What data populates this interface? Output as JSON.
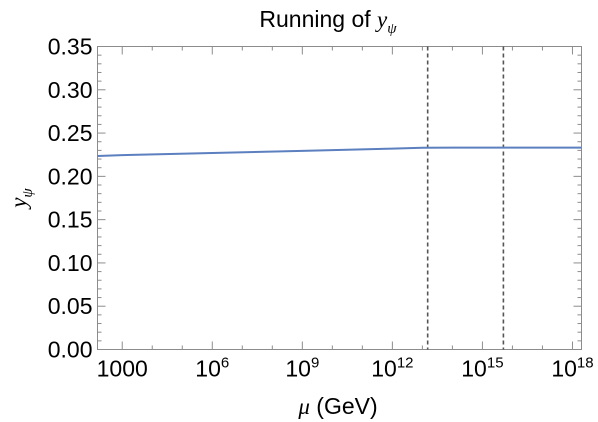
{
  "chart_data": {
    "type": "line",
    "title": "Running of ",
    "title_symbol": "y",
    "title_subscript": "ψ",
    "xlabel_symbol": "μ",
    "xlabel_unit": " (GeV)",
    "ylabel_symbol": "y",
    "ylabel_subscript": "ψ",
    "x_scale": "log",
    "xlim": [
      150,
      2000000000000000000
    ],
    "ylim": [
      0,
      0.35
    ],
    "x_ticks": [
      {
        "value": 1000,
        "base": "1000",
        "exp": ""
      },
      {
        "value": 1000000,
        "base": "10",
        "exp": "6"
      },
      {
        "value": 1000000000,
        "base": "10",
        "exp": "9"
      },
      {
        "value": 1000000000000,
        "base": "10",
        "exp": "12"
      },
      {
        "value": 1000000000000000,
        "base": "10",
        "exp": "15"
      },
      {
        "value": 1000000000000000000,
        "base": "10",
        "exp": "18"
      }
    ],
    "y_ticks": [
      "0.00",
      "0.05",
      "0.10",
      "0.15",
      "0.20",
      "0.25",
      "0.30",
      "0.35"
    ],
    "series": [
      {
        "x": [
          150,
          1000,
          1000000,
          1000000000,
          1000000000000,
          10000000000000,
          100000000000000,
          1000000000000000,
          10000000000000000,
          100000000000000000,
          1000000000000000000,
          2000000000000000000
        ],
        "y": [
          0.2235,
          0.2245,
          0.227,
          0.2295,
          0.232,
          0.233,
          0.2332,
          0.2332,
          0.2332,
          0.2332,
          0.2332,
          0.2332
        ],
        "color": "#5b7fbf"
      }
    ],
    "vlines": [
      {
        "x": 15000000000000,
        "style": "dashed",
        "color": "#555555"
      },
      {
        "x": 5000000000000000,
        "style": "dashed",
        "color": "#555555"
      }
    ],
    "grid": false
  }
}
